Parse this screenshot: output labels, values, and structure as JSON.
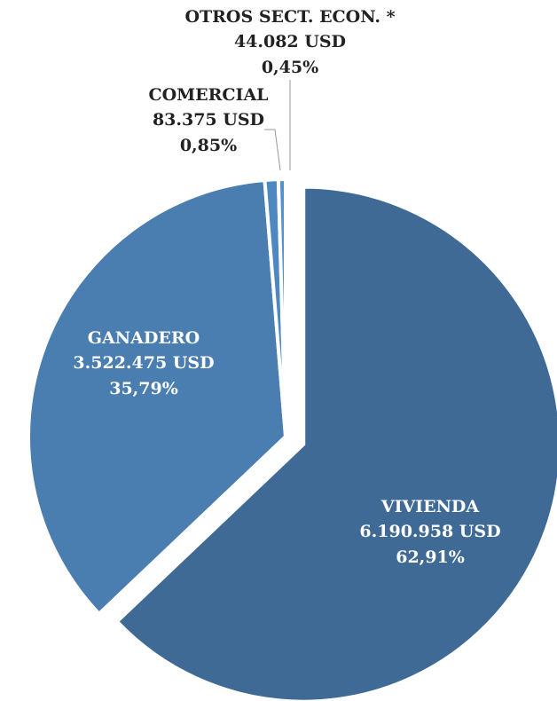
{
  "chart_data": {
    "type": "pie",
    "categories": [
      "VIVIENDA",
      "GANADERO",
      "COMERCIAL",
      "OTROS SECT. ECON. *"
    ],
    "values": [
      6190958,
      3522475,
      83375,
      44082
    ],
    "value_labels": [
      "6.190.958 USD",
      "3.522.475 USD",
      "83.375 USD",
      "44.082 USD"
    ],
    "percentages": [
      62.91,
      35.79,
      0.85,
      0.45
    ],
    "percentage_labels": [
      "62,91%",
      "35,79%",
      "0,85%",
      "0,45%"
    ],
    "colors": [
      "#3f6a96",
      "#4a7eb1",
      "#4f88c1",
      "#5592cc"
    ]
  }
}
